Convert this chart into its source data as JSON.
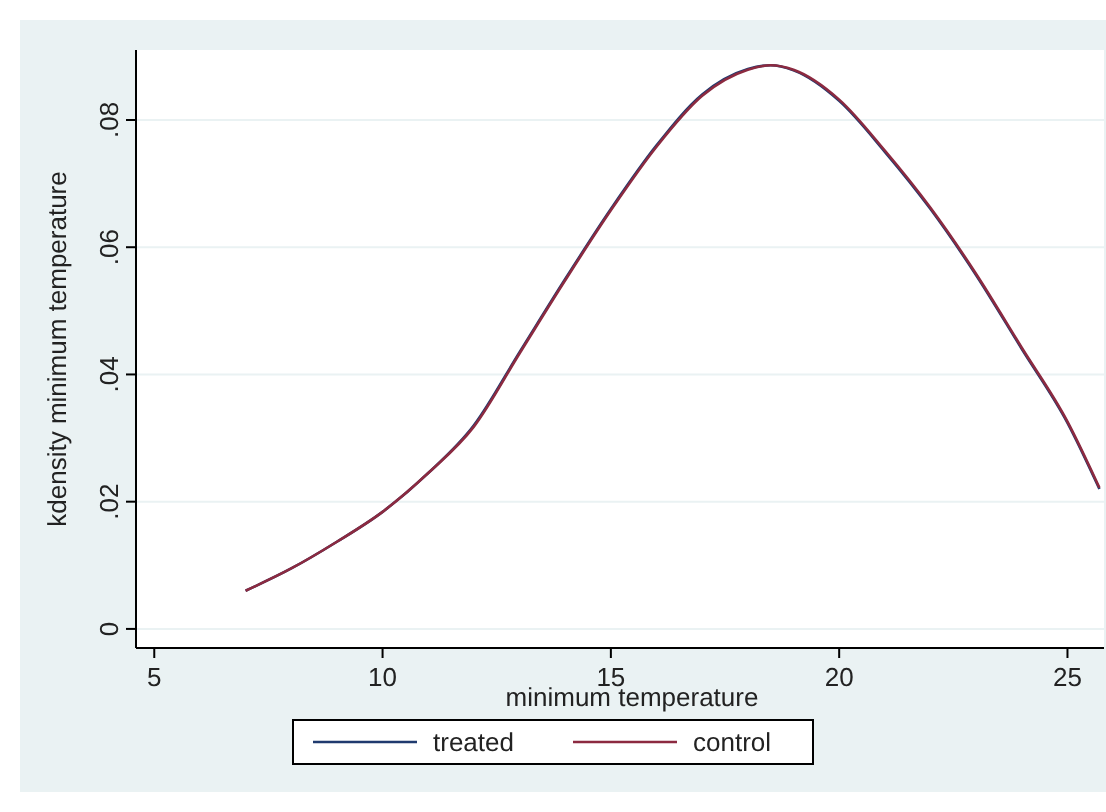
{
  "chart_data": {
    "type": "line",
    "xlabel": "minimum temperature",
    "ylabel": "kdensity minimum temperature",
    "xlim": [
      4.6,
      25.8
    ],
    "xticks": [
      5,
      10,
      15,
      20,
      25
    ],
    "ylim": [
      -0.003,
      0.091
    ],
    "yticks": [
      0,
      {
        "value": 0.02,
        "label": ".02"
      },
      {
        "value": 0.04,
        "label": ".04"
      },
      {
        "value": 0.06,
        "label": ".06"
      },
      {
        "value": 0.08,
        "label": ".08"
      }
    ],
    "grid": "y",
    "legend": "bottom",
    "line_style": "solid",
    "marker": "none",
    "series": [
      {
        "name": "treated",
        "color": "#1f3a6e",
        "x": [
          7,
          8,
          9,
          10,
          11,
          12,
          13,
          14,
          15,
          16,
          17,
          18,
          18.5,
          19,
          20,
          21,
          22,
          23,
          24,
          25,
          25.7
        ],
        "values": [
          0.006,
          0.0095,
          0.0137,
          0.0184,
          0.0245,
          0.032,
          0.0435,
          0.055,
          0.066,
          0.076,
          0.084,
          0.088,
          0.0886,
          0.0878,
          0.083,
          0.075,
          0.066,
          0.0556,
          0.044,
          0.0324,
          0.022
        ]
      },
      {
        "name": "control",
        "color": "#8c2a40",
        "x": [
          7,
          8,
          9,
          10,
          11,
          12,
          13,
          14,
          15,
          16,
          17,
          18,
          18.5,
          19,
          20,
          21,
          22,
          23,
          24,
          25,
          25.7
        ],
        "values": [
          0.006,
          0.0095,
          0.0137,
          0.0184,
          0.0245,
          0.0318,
          0.0433,
          0.0548,
          0.0658,
          0.0758,
          0.0838,
          0.0879,
          0.0886,
          0.0879,
          0.0832,
          0.0752,
          0.0662,
          0.0558,
          0.0442,
          0.0326,
          0.0222
        ]
      }
    ]
  }
}
